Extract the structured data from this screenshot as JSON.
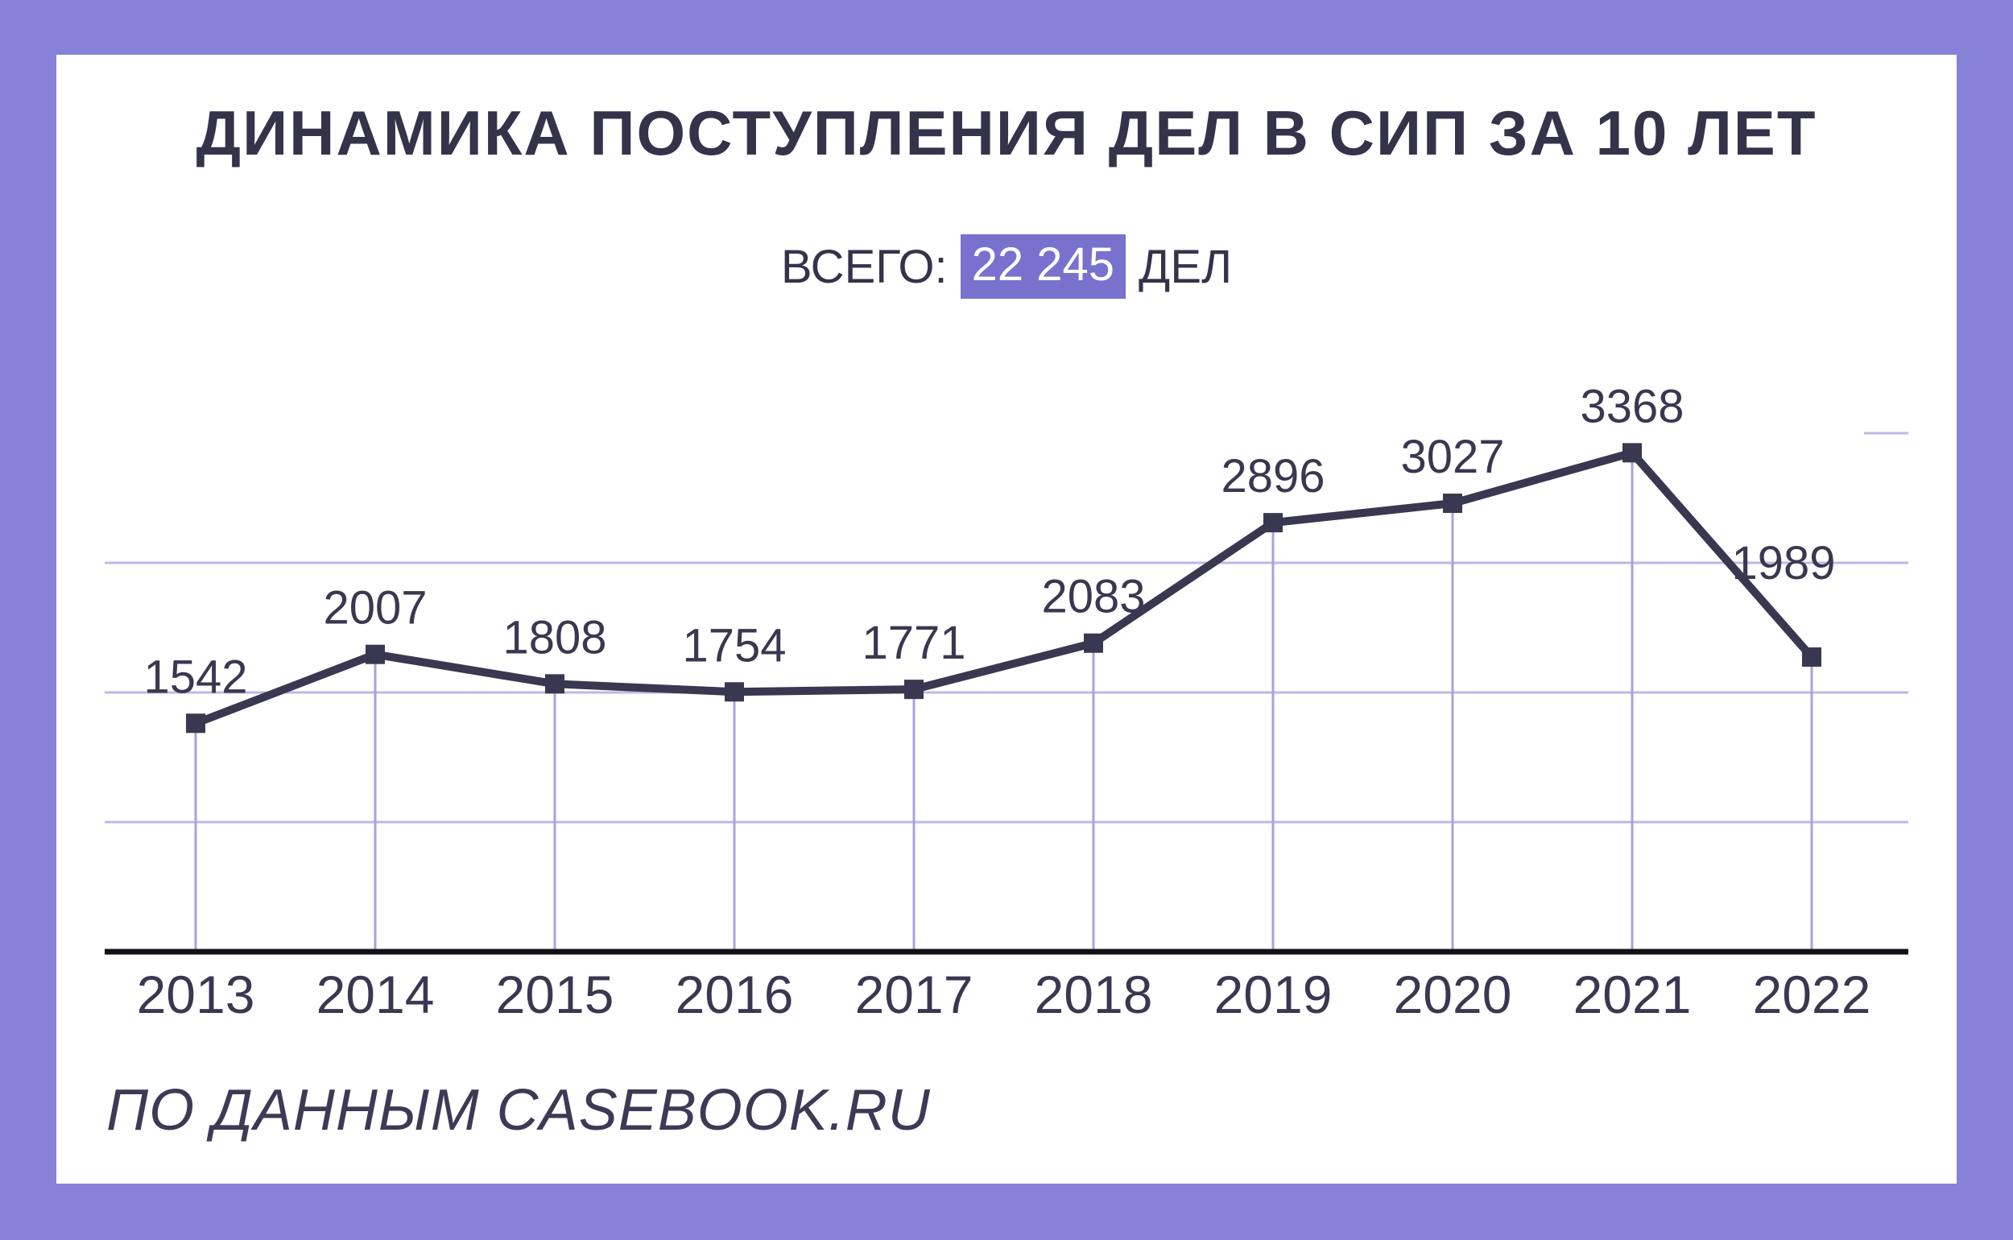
{
  "frame": {
    "background_color": "#8781D8",
    "panel_color": "#FFFFFF"
  },
  "title": "ДИНАМИКА ПОСТУПЛЕНИЯ ДЕЛ В СИП ЗА 10 ЛЕТ",
  "subtitle": {
    "prefix": "ВСЕГО:",
    "total": "22 245",
    "suffix": "ДЕЛ",
    "highlight_color": "#7872CE",
    "highlight_text_color": "#FFFFFF"
  },
  "footer": {
    "source_text": "ПО ДАННЫМ CASEBOOK.RU"
  },
  "chart_data": {
    "type": "line",
    "title": "ДИНАМИКА ПОСТУПЛЕНИЯ ДЕЛ В СИП ЗА 10 ЛЕТ",
    "categories": [
      "2013",
      "2014",
      "2015",
      "2016",
      "2017",
      "2018",
      "2019",
      "2020",
      "2021",
      "2022"
    ],
    "values": [
      1542,
      2007,
      1808,
      1754,
      1771,
      2083,
      2896,
      3027,
      3368,
      1989
    ],
    "total_label": "22 245",
    "total_value": 22245,
    "xlabel": "",
    "ylabel": "",
    "ylim": [
      0,
      3500
    ],
    "grid_step": 875,
    "grid": true,
    "legend": false,
    "data_labels": true,
    "series_color": "#3A3850",
    "marker": "square",
    "h_gridline_color": "#BCB8E6",
    "v_dropline_color": "#A8A3DA",
    "axis_color": "#121118",
    "label_color": "#3A3850"
  }
}
